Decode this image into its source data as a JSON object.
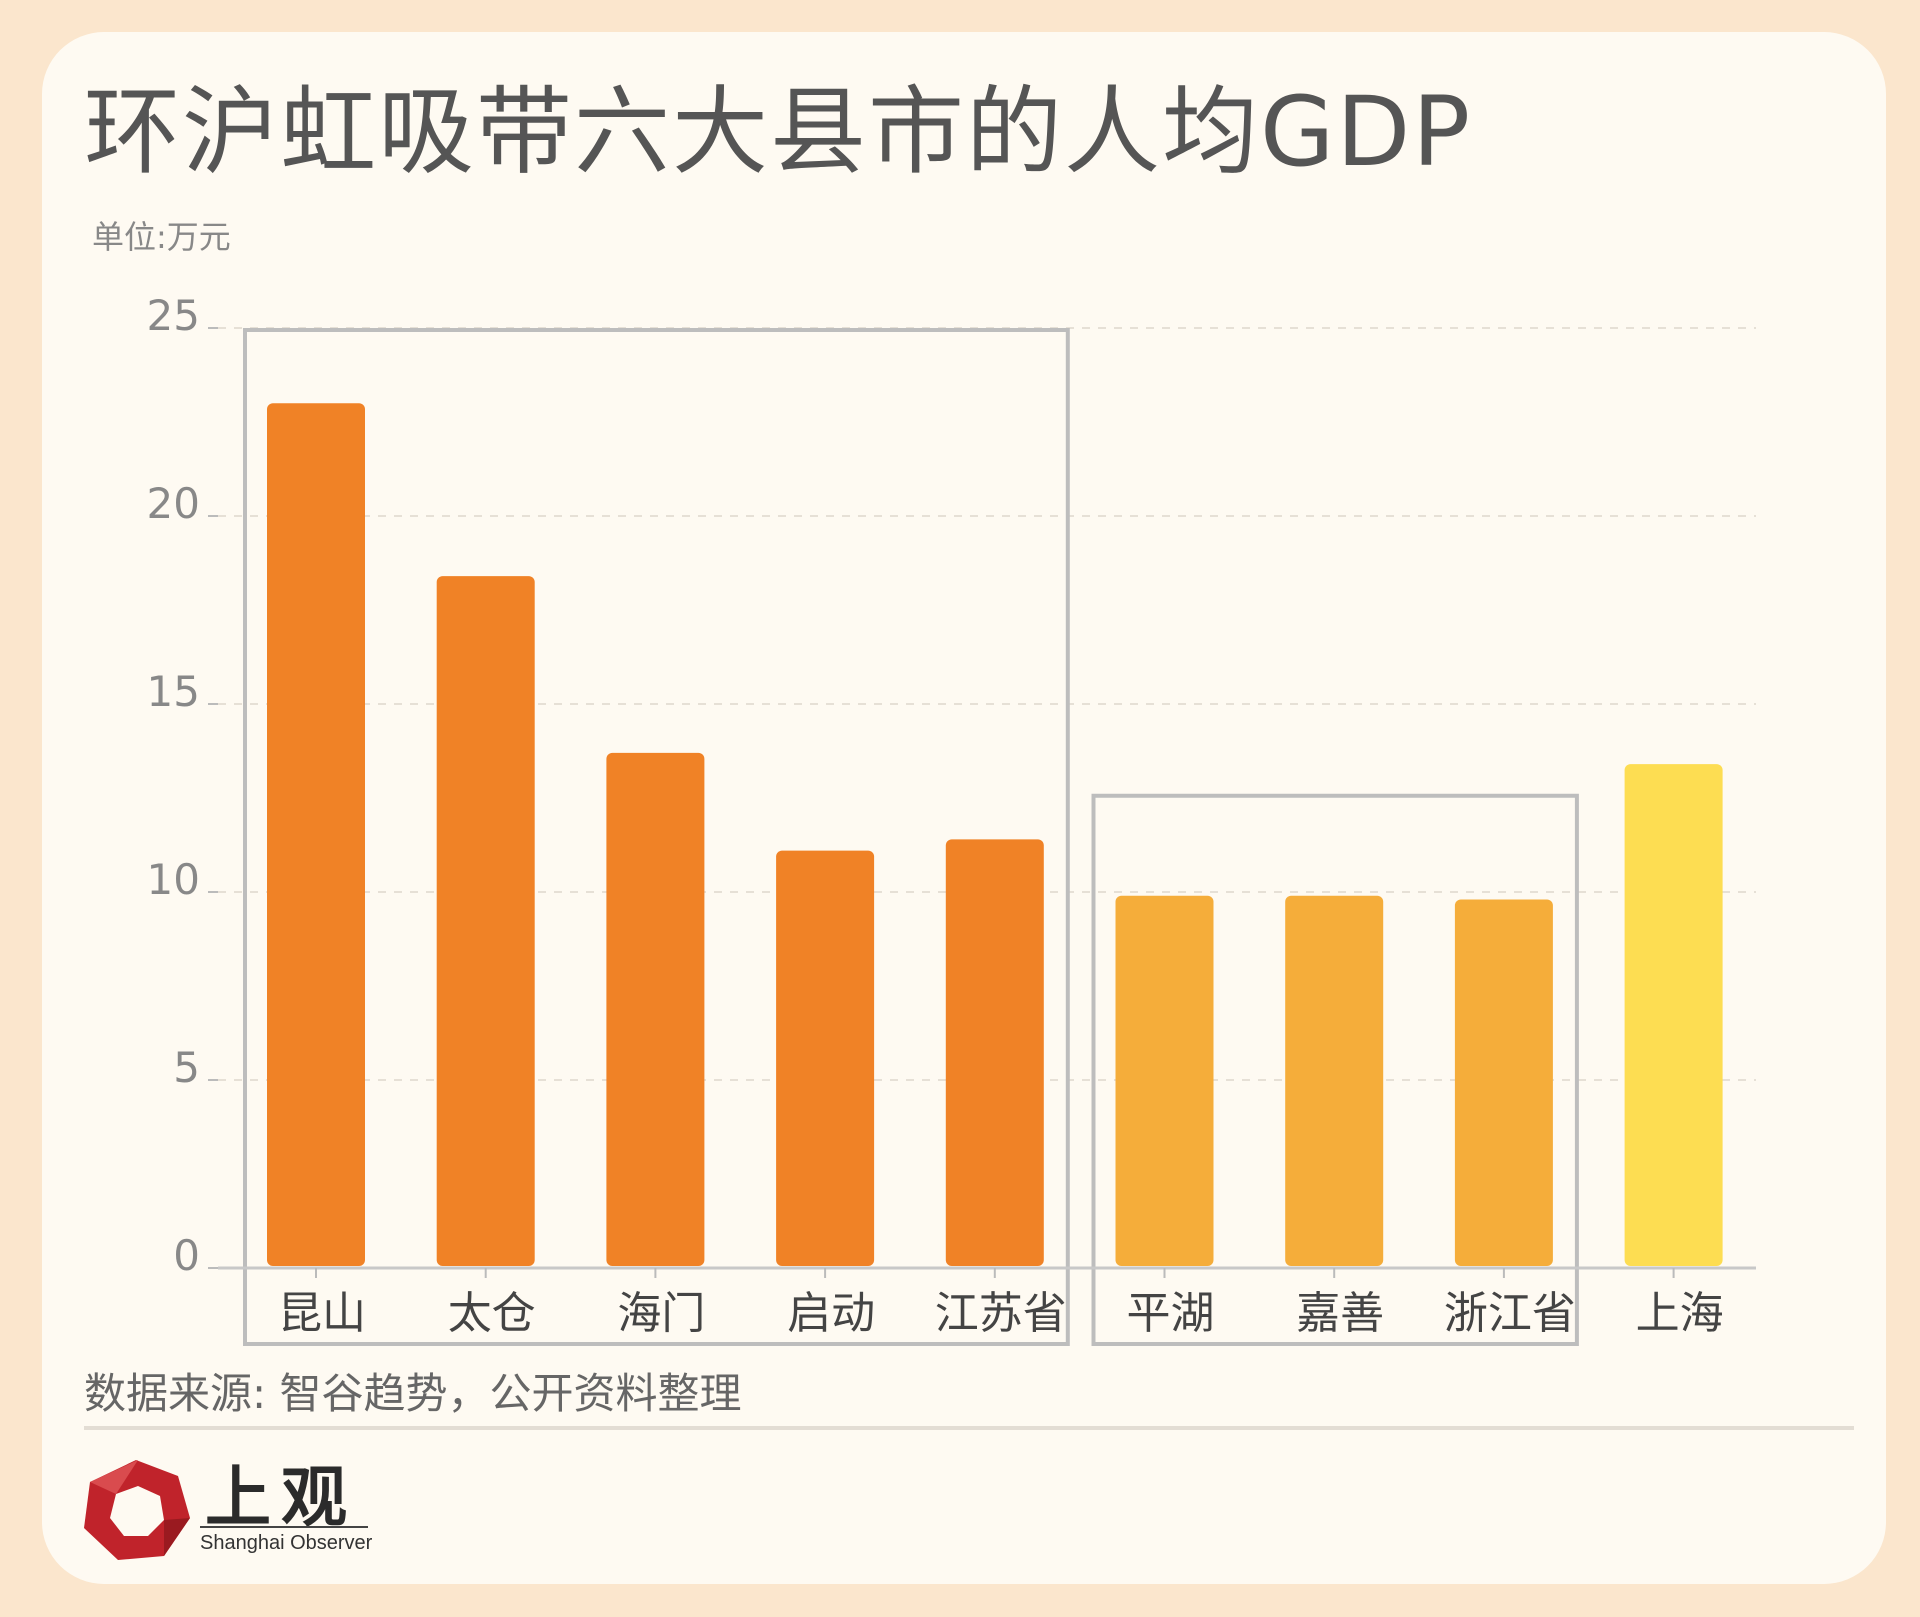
{
  "header": {
    "title": "环沪虹吸带六大县市的人均GDP",
    "unit": "单位:万元"
  },
  "footer": {
    "source": "数据来源: 智谷趋势，公开资料整理",
    "logo_name": "上观",
    "logo_sub": "Shanghai Observer"
  },
  "colors": {
    "jiangsu": "#f08226",
    "zhejiang": "#f5ad3a",
    "shanghai": "#fddd52",
    "group_box": "#bdbdbd",
    "logo": "#c0232b"
  },
  "chart_data": {
    "type": "bar",
    "title": "环沪虹吸带六大县市的人均GDP",
    "ylabel": "单位:万元",
    "ylim": [
      0,
      25
    ],
    "yticks": [
      0,
      5,
      10,
      15,
      20,
      25
    ],
    "grid": true,
    "categories": [
      "昆山",
      "太仓",
      "海门",
      "启动",
      "江苏省",
      "平湖",
      "嘉善",
      "浙江省",
      "上海"
    ],
    "values": [
      23.0,
      18.4,
      13.7,
      11.1,
      11.4,
      9.9,
      9.9,
      9.8,
      13.4
    ],
    "groups": [
      {
        "members": [
          "昆山",
          "太仓",
          "海门",
          "启动",
          "江苏省"
        ],
        "color": "#f08226",
        "boxed": true
      },
      {
        "members": [
          "平湖",
          "嘉善",
          "浙江省"
        ],
        "color": "#f5ad3a",
        "boxed": true
      },
      {
        "members": [
          "上海"
        ],
        "color": "#fddd52",
        "boxed": false
      }
    ]
  }
}
